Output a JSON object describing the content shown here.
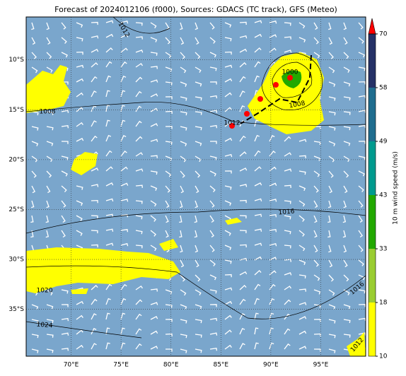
{
  "title": "Forecast of 2024012106 (f000), Sources: GDACS (TC track), GFS (Meteo)",
  "map": {
    "lon_range": [
      65.5,
      99.5
    ],
    "lat_range": [
      -5.7,
      -39.7
    ],
    "lon_labels": [
      {
        "value": 70,
        "label": "70°E"
      },
      {
        "value": 75,
        "label": "75°E"
      },
      {
        "value": 80,
        "label": "80°E"
      },
      {
        "value": 85,
        "label": "85°E"
      },
      {
        "value": 90,
        "label": "90°E"
      },
      {
        "value": 95,
        "label": "95°E"
      }
    ],
    "lat_labels": [
      {
        "value": -10,
        "label": "10°S"
      },
      {
        "value": -15,
        "label": "15°S"
      },
      {
        "value": -20,
        "label": "20°S"
      },
      {
        "value": -25,
        "label": "25°S"
      },
      {
        "value": -30,
        "label": "30°S"
      },
      {
        "value": -35,
        "label": "35°S"
      }
    ],
    "isobar_labels": [
      "1012",
      "1008",
      "1012",
      "1008",
      "1000",
      "1016",
      "1020",
      "1024",
      "1016",
      "1012"
    ]
  },
  "colorbar": {
    "label": "10 m wind speed (m/s)",
    "ticks": [
      10,
      18,
      33,
      43,
      49,
      58,
      70
    ],
    "colors": [
      "#ffff00",
      "#9acd32",
      "#22a800",
      "#009a8e",
      "#1f6d8f",
      "#253166"
    ],
    "extend_color": "#ff0000"
  }
}
